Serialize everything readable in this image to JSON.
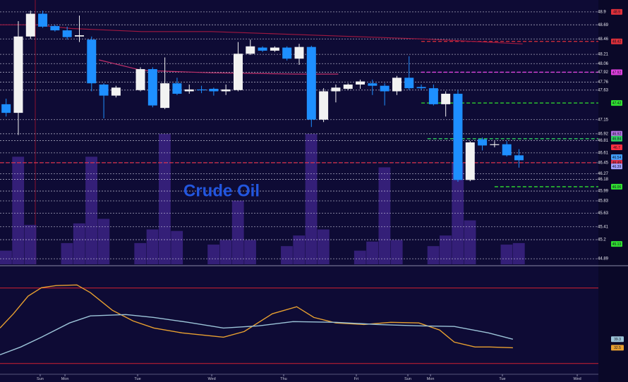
{
  "chart_data": [
    {
      "type": "candlestick",
      "title": "Crude Oil",
      "up_color": "#f2f2f2",
      "down_color": "#1e8fff",
      "x": [
        0,
        1,
        2,
        3,
        4,
        5,
        6,
        7,
        8,
        9,
        11,
        12,
        13,
        14,
        15,
        16,
        17,
        18,
        19,
        20,
        21,
        22,
        23,
        24,
        25,
        26,
        27,
        28,
        29,
        30,
        31,
        32,
        33,
        34,
        35,
        36,
        37,
        38,
        39,
        40,
        41,
        42
      ],
      "open": [
        47.4,
        47.26,
        48.5,
        48.87,
        48.67,
        48.6,
        48.5,
        48.45,
        47.72,
        47.54,
        47.63,
        47.97,
        47.34,
        47.74,
        47.61,
        47.64,
        47.65,
        47.61,
        47.63,
        48.22,
        48.32,
        48.27,
        48.32,
        48.14,
        48.33,
        47.15,
        47.61,
        47.65,
        47.72,
        47.74,
        47.7,
        47.61,
        47.83,
        47.68,
        47.66,
        47.4,
        47.57,
        46.17,
        46.83,
        46.75,
        46.75,
        46.57
      ],
      "close": [
        47.26,
        48.5,
        48.87,
        48.66,
        48.6,
        48.49,
        48.52,
        47.74,
        47.54,
        47.67,
        47.97,
        47.38,
        47.74,
        47.57,
        47.64,
        47.63,
        47.61,
        47.64,
        48.22,
        48.34,
        48.27,
        48.32,
        48.14,
        48.33,
        47.15,
        47.61,
        47.67,
        47.72,
        47.77,
        47.7,
        47.61,
        47.83,
        47.66,
        47.66,
        47.4,
        47.57,
        46.17,
        46.78,
        46.73,
        46.75,
        46.57,
        46.49
      ],
      "high": [
        47.49,
        48.75,
        48.92,
        48.92,
        48.69,
        48.66,
        48.84,
        48.5,
        47.74,
        47.7,
        48.0,
        48.0,
        48.16,
        47.83,
        47.72,
        47.7,
        47.67,
        47.72,
        48.41,
        48.45,
        48.34,
        48.34,
        48.34,
        48.38,
        48.35,
        47.66,
        47.72,
        47.74,
        47.8,
        47.8,
        47.74,
        47.86,
        48.18,
        47.72,
        47.72,
        47.61,
        47.63,
        46.8,
        46.86,
        46.8,
        46.8,
        46.67
      ],
      "low": [
        47.2,
        46.9,
        48.46,
        48.64,
        48.58,
        48.45,
        48.41,
        47.61,
        47.17,
        47.51,
        47.61,
        47.35,
        47.32,
        47.55,
        47.57,
        47.58,
        47.54,
        47.55,
        47.61,
        48.2,
        48.25,
        48.25,
        48.11,
        48.04,
        47.03,
        47.11,
        47.43,
        47.63,
        47.65,
        47.55,
        47.38,
        47.55,
        47.63,
        47.63,
        47.38,
        47.2,
        46.14,
        46.15,
        46.65,
        46.7,
        46.55,
        46.37
      ],
      "xlim": [
        -0.5,
        48.5
      ],
      "ylim": [
        44.8,
        49.07
      ],
      "yticks": [
        48.9,
        48.69,
        48.46,
        48.21,
        48.06,
        47.92,
        47.76,
        47.63,
        47.15,
        46.92,
        46.81,
        46.61,
        46.45,
        46.27,
        46.18,
        45.99,
        45.83,
        45.63,
        45.41,
        45.2,
        44.89
      ],
      "levels": [
        {
          "value": 48.9,
          "color": "#e0303a"
        },
        {
          "value": 48.42,
          "color": "#e0303a",
          "start": 34
        },
        {
          "value": 47.92,
          "color": "#e040e0",
          "start": 34
        },
        {
          "value": 47.42,
          "color": "#30e030",
          "start": 34
        },
        {
          "value": 46.92,
          "color": "#b070e0"
        },
        {
          "value": 46.84,
          "color": "#30d060",
          "start": 34.5
        },
        {
          "value": 46.7,
          "color": "#ff3040"
        },
        {
          "value": 46.54,
          "color": "#40a0ff"
        },
        {
          "value": 46.45,
          "color": "#e0304a",
          "start": -0.5
        },
        {
          "value": 46.39,
          "color": "#a0a0ff"
        },
        {
          "value": 46.06,
          "color": "#30e030",
          "start": 40
        },
        {
          "value": 45.13,
          "color": "#30e030"
        }
      ],
      "moving_averages": [
        {
          "color": "#a01840",
          "x": [
            -0.5,
            2.4,
            5.3,
            11.1,
            16.8,
            22.6,
            28.4,
            34.2,
            42.3
          ],
          "values": [
            48.69,
            48.69,
            48.63,
            48.58,
            48.58,
            48.54,
            48.5,
            48.46,
            48.38
          ]
        },
        {
          "color": "#c0306a",
          "x": [
            7.6,
            11.1,
            16.8,
            23.8,
            27.2
          ],
          "values": [
            48.12,
            47.95,
            47.91,
            47.89,
            47.89
          ]
        }
      ],
      "volume": {
        "color": "#3b2384",
        "ylim": [
          0,
          100
        ],
        "x": [
          0,
          1,
          2,
          5,
          6,
          7,
          8,
          11,
          12,
          13,
          14,
          17,
          18,
          19,
          20,
          23,
          24,
          25,
          26,
          29,
          30,
          31,
          32,
          35,
          36,
          37,
          38,
          41,
          42
        ],
        "values": [
          9,
          71,
          26,
          14,
          27,
          71,
          30,
          14,
          23,
          86,
          22,
          13,
          16,
          42,
          16,
          12,
          19,
          86,
          23,
          9,
          15,
          64,
          16,
          12,
          19,
          67,
          29,
          13,
          14
        ]
      }
    },
    {
      "type": "line",
      "xlim": [
        -0.5,
        48.5
      ],
      "ylim": [
        12,
        96
      ],
      "reference_lines": [
        80,
        20
      ],
      "reference_color": "#d02030",
      "series": [
        {
          "color": "#e8a030",
          "x": [
            -0.5,
            0.6,
            1.8,
            2.9,
            4.1,
            5.8,
            6.9,
            8.7,
            10.4,
            12.1,
            14.4,
            17.8,
            19.5,
            21.8,
            23.8,
            25.2,
            27.0,
            29.3,
            31.5,
            33.8,
            35.5,
            36.7,
            38.4,
            39.6,
            41.5
          ],
          "values": [
            48.2,
            59.5,
            73.5,
            80.2,
            81.9,
            82.4,
            76.3,
            62.3,
            53.8,
            48.2,
            44.3,
            40.9,
            45.4,
            59.5,
            65.1,
            56.6,
            52.2,
            51.0,
            52.7,
            52.2,
            46.6,
            37.0,
            33.1,
            33.1,
            32.5
          ]
        },
        {
          "color": "#9cc4d8",
          "x": [
            -0.5,
            1.2,
            2.9,
            5.2,
            6.9,
            9.8,
            12.1,
            14.9,
            17.8,
            20.7,
            23.5,
            27.0,
            30.4,
            33.8,
            36.7,
            39.5,
            41.5
          ],
          "values": [
            26.9,
            33.1,
            40.9,
            52.2,
            57.8,
            58.9,
            56.6,
            52.7,
            48.2,
            49.9,
            53.3,
            52.7,
            51.0,
            49.9,
            49.4,
            44.3,
            39.3
          ]
        }
      ],
      "xticks": [
        {
          "value": 2.79,
          "label": "Sun"
        },
        {
          "value": 4.82,
          "label": "Mon"
        },
        {
          "value": 10.77,
          "label": "Tue"
        },
        {
          "value": 16.84,
          "label": "Wed"
        },
        {
          "value": 22.73,
          "label": "Thu"
        },
        {
          "value": 28.68,
          "label": "Fri"
        },
        {
          "value": 32.9,
          "label": "Sun"
        },
        {
          "value": 34.75,
          "label": "Mon"
        },
        {
          "value": 40.64,
          "label": "Tue"
        },
        {
          "value": 46.77,
          "label": "Wed"
        }
      ]
    }
  ]
}
